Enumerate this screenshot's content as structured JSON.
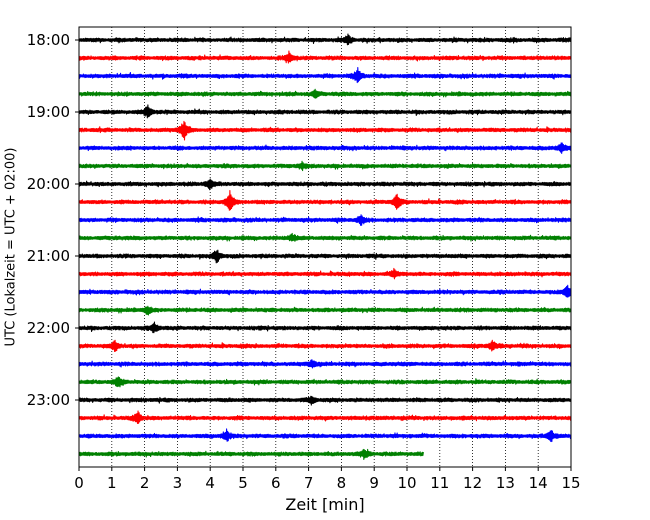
{
  "chart_data": {
    "type": "line",
    "title": "",
    "xlabel": "Zeit  [min]",
    "ylabel": "UTC (Lokalzeit = UTC + 02:00)",
    "xlim": [
      0,
      15
    ],
    "x_ticks": [
      "0",
      "1",
      "2",
      "3",
      "4",
      "5",
      "6",
      "7",
      "8",
      "9",
      "10",
      "11",
      "12",
      "13",
      "14",
      "15"
    ],
    "y_ticks": [
      "18:00",
      "19:00",
      "20:00",
      "21:00",
      "22:00",
      "23:00"
    ],
    "grid": "vertical-dotted",
    "colors": [
      "#000000",
      "#ff0000",
      "#0000ff",
      "#008000"
    ],
    "traces": [
      {
        "start": "18:00",
        "end_min": 15,
        "color": "#000000",
        "events": [
          {
            "t": 8.2,
            "amp": 0.5
          }
        ]
      },
      {
        "start": "18:15",
        "end_min": 15,
        "color": "#ff0000",
        "events": [
          {
            "t": 6.4,
            "amp": 0.6
          }
        ]
      },
      {
        "start": "18:30",
        "end_min": 15,
        "color": "#0000ff",
        "events": [
          {
            "t": 8.5,
            "amp": 0.8
          }
        ]
      },
      {
        "start": "18:45",
        "end_min": 15,
        "color": "#008000",
        "events": [
          {
            "t": 7.2,
            "amp": 0.4
          }
        ]
      },
      {
        "start": "19:00",
        "end_min": 15,
        "color": "#000000",
        "events": [
          {
            "t": 2.1,
            "amp": 0.7
          }
        ]
      },
      {
        "start": "19:15",
        "end_min": 15,
        "color": "#ff0000",
        "events": [
          {
            "t": 3.2,
            "amp": 1.1
          }
        ]
      },
      {
        "start": "19:30",
        "end_min": 15,
        "color": "#0000ff",
        "events": [
          {
            "t": 14.7,
            "amp": 0.5
          }
        ]
      },
      {
        "start": "19:45",
        "end_min": 15,
        "color": "#008000",
        "events": [
          {
            "t": 6.8,
            "amp": 0.4
          }
        ]
      },
      {
        "start": "20:00",
        "end_min": 15,
        "color": "#000000",
        "events": [
          {
            "t": 4.0,
            "amp": 0.6
          }
        ]
      },
      {
        "start": "20:15",
        "end_min": 15,
        "color": "#ff0000",
        "events": [
          {
            "t": 4.6,
            "amp": 1.2
          },
          {
            "t": 9.7,
            "amp": 0.9
          }
        ]
      },
      {
        "start": "20:30",
        "end_min": 15,
        "color": "#0000ff",
        "events": [
          {
            "t": 8.6,
            "amp": 0.5
          }
        ]
      },
      {
        "start": "20:45",
        "end_min": 15,
        "color": "#008000",
        "events": [
          {
            "t": 6.5,
            "amp": 0.4
          }
        ]
      },
      {
        "start": "21:00",
        "end_min": 15,
        "color": "#000000",
        "events": [
          {
            "t": 4.2,
            "amp": 0.7
          }
        ]
      },
      {
        "start": "21:15",
        "end_min": 15,
        "color": "#ff0000",
        "events": [
          {
            "t": 9.6,
            "amp": 0.4
          }
        ]
      },
      {
        "start": "21:30",
        "end_min": 15,
        "color": "#0000ff",
        "events": [
          {
            "t": 14.9,
            "amp": 0.7
          }
        ]
      },
      {
        "start": "21:45",
        "end_min": 15,
        "color": "#008000",
        "events": [
          {
            "t": 2.1,
            "amp": 0.4
          }
        ]
      },
      {
        "start": "22:00",
        "end_min": 15,
        "color": "#000000",
        "events": [
          {
            "t": 2.3,
            "amp": 0.5
          }
        ]
      },
      {
        "start": "22:15",
        "end_min": 15,
        "color": "#ff0000",
        "events": [
          {
            "t": 1.1,
            "amp": 0.6
          },
          {
            "t": 12.6,
            "amp": 0.5
          }
        ]
      },
      {
        "start": "22:30",
        "end_min": 15,
        "color": "#0000ff",
        "events": [
          {
            "t": 7.1,
            "amp": 0.4
          }
        ]
      },
      {
        "start": "22:45",
        "end_min": 15,
        "color": "#008000",
        "events": [
          {
            "t": 1.2,
            "amp": 0.6
          }
        ]
      },
      {
        "start": "23:00",
        "end_min": 15,
        "color": "#000000",
        "events": [
          {
            "t": 7.1,
            "amp": 0.4
          }
        ]
      },
      {
        "start": "23:15",
        "end_min": 15,
        "color": "#ff0000",
        "events": [
          {
            "t": 1.8,
            "amp": 0.6
          }
        ]
      },
      {
        "start": "23:30",
        "end_min": 15,
        "color": "#0000ff",
        "events": [
          {
            "t": 4.5,
            "amp": 0.6
          },
          {
            "t": 14.4,
            "amp": 0.6
          }
        ]
      },
      {
        "start": "23:45",
        "end_min": 10.5,
        "color": "#008000",
        "events": [
          {
            "t": 8.7,
            "amp": 0.5
          }
        ]
      }
    ]
  }
}
